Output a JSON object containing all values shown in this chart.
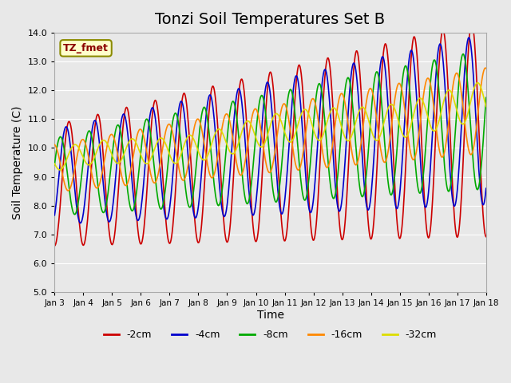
{
  "title": "Tonzi Soil Temperatures Set B",
  "xlabel": "Time",
  "ylabel": "Soil Temperature (C)",
  "ylim": [
    5.0,
    14.0
  ],
  "yticks": [
    5.0,
    6.0,
    7.0,
    8.0,
    9.0,
    10.0,
    11.0,
    12.0,
    13.0,
    14.0
  ],
  "xtick_labels": [
    "Jan 3",
    "Jan 4",
    "Jan 5",
    "Jan 6",
    "Jan 7",
    "Jan 8",
    "Jan 9",
    "Jan 10",
    "Jan 11",
    "Jan 12",
    "Jan 13",
    "Jan 14",
    "Jan 15",
    "Jan 16",
    "Jan 17",
    "Jan 18"
  ],
  "legend_label": "TZ_fmet",
  "series_labels": [
    "-2cm",
    "-4cm",
    "-8cm",
    "-16cm",
    "-32cm"
  ],
  "series_colors": [
    "#cc0000",
    "#0000cc",
    "#00aa00",
    "#ff8800",
    "#dddd00"
  ],
  "background_color": "#e8e8e8",
  "plot_bg_color": "#e8e8e8",
  "grid_color": "#ffffff",
  "title_fontsize": 14,
  "label_fontsize": 10,
  "n_days": 15,
  "n_points_per_day": 48
}
